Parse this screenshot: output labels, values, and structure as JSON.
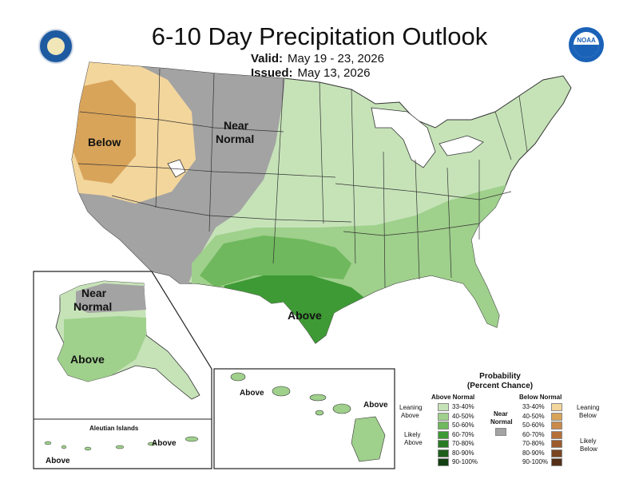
{
  "header": {
    "title": "6-10 Day Precipitation Outlook",
    "valid_label": "Valid:",
    "valid_value": "May 19 - 23, 2026",
    "issued_label": "Issued:",
    "issued_value": "May 13, 2026"
  },
  "map": {
    "region_labels": {
      "below": "Below",
      "near_normal_line1": "Near",
      "near_normal_line2": "Normal",
      "above": "Above"
    },
    "alaska": {
      "near_line1": "Near",
      "near_line2": "Normal",
      "above": "Above"
    },
    "aleutian": {
      "title": "Aleutian Islands",
      "above_1": "Above",
      "above_2": "Above"
    },
    "hawaii": {
      "above_1": "Above",
      "above_2": "Above"
    },
    "colors": {
      "near_normal": "#a3a3a3",
      "above_33_40": "#c6e3b8",
      "above_40_50": "#9fd08c",
      "above_50_60": "#6fb85d",
      "above_60_70": "#3e9a34",
      "below_33_40": "#f3d69c",
      "below_40_50": "#d8a45a"
    }
  },
  "legend": {
    "title_line1": "Probability",
    "title_line2": "(Percent Chance)",
    "above_header": "Above Normal",
    "below_header": "Below Normal",
    "near_line1": "Near",
    "near_line2": "Normal",
    "leaning_above_1": "Leaning",
    "leaning_above_2": "Above",
    "likely_above_1": "Likely",
    "likely_above_2": "Above",
    "leaning_below_1": "Leaning",
    "leaning_below_2": "Below",
    "likely_below_1": "Likely",
    "likely_below_2": "Below",
    "above_rows": [
      "33-40%",
      "40-50%",
      "50-60%",
      "60-70%",
      "70-80%",
      "80-90%",
      "90-100%"
    ],
    "below_rows": [
      "33-40%",
      "40-50%",
      "50-60%",
      "60-70%",
      "70-80%",
      "80-90%",
      "90-100%"
    ],
    "above_colors": [
      "#c6e3b8",
      "#9fd08c",
      "#6fb85d",
      "#3e9a34",
      "#2a7a24",
      "#1d5e1a",
      "#134012"
    ],
    "below_colors": [
      "#f3d69c",
      "#d8a45a",
      "#c98a4a",
      "#b5703a",
      "#9c5a2e",
      "#7a4522",
      "#552e18"
    ],
    "near_color": "#a3a3a3"
  }
}
